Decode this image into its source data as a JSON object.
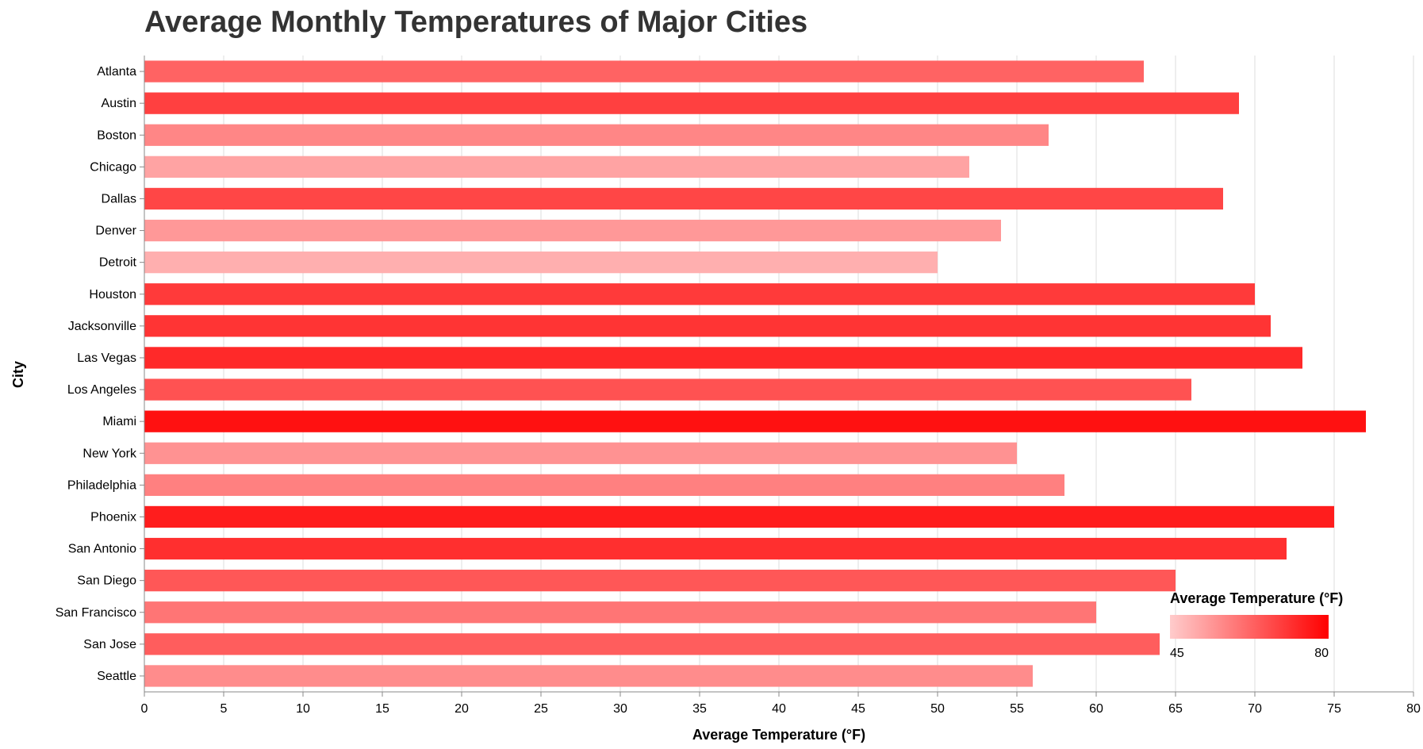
{
  "chart_data": {
    "type": "bar",
    "orientation": "horizontal",
    "title": "Average Monthly Temperatures of Major Cities",
    "xlabel": "Average Temperature (°F)",
    "ylabel": "City",
    "xlim": [
      0,
      80
    ],
    "x_ticks": [
      "0",
      "5",
      "10",
      "15",
      "20",
      "25",
      "30",
      "35",
      "40",
      "45",
      "50",
      "55",
      "60",
      "65",
      "70",
      "75",
      "80"
    ],
    "categories": [
      "Atlanta",
      "Austin",
      "Boston",
      "Chicago",
      "Dallas",
      "Denver",
      "Detroit",
      "Houston",
      "Jacksonville",
      "Las Vegas",
      "Los Angeles",
      "Miami",
      "New York",
      "Philadelphia",
      "Phoenix",
      "San Antonio",
      "San Diego",
      "San Francisco",
      "San Jose",
      "Seattle"
    ],
    "values": [
      63,
      69,
      57,
      52,
      68,
      54,
      50,
      70,
      71,
      73,
      66,
      77,
      55,
      58,
      75,
      72,
      65,
      60,
      64,
      56
    ],
    "grid": "vertical",
    "color_scale": {
      "domain": [
        45,
        80
      ],
      "low_color": "#ffcccc",
      "high_color": "#ff0000"
    },
    "legend": {
      "title": "Average Temperature (°F)",
      "placement": "bottom-right",
      "min_label": "45",
      "max_label": "80"
    }
  }
}
